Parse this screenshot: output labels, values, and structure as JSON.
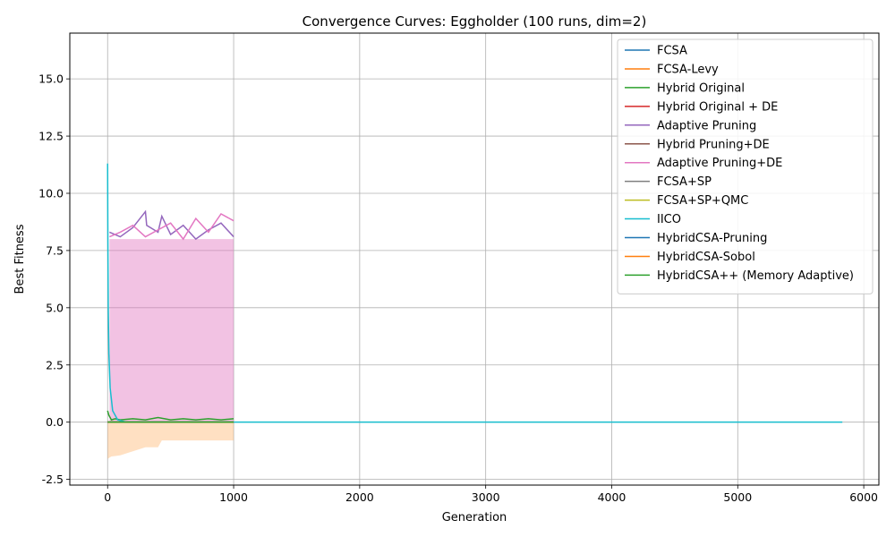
{
  "chart_data": {
    "type": "line",
    "title": "Convergence Curves: Eggholder (100 runs, dim=2)",
    "xlabel": "Generation",
    "ylabel": "Best Fitness",
    "xlim": [
      -300,
      6120
    ],
    "ylim": [
      -2.75,
      17.0
    ],
    "xticks": [
      0,
      1000,
      2000,
      3000,
      4000,
      5000,
      6000
    ],
    "yticks": [
      -2.5,
      0.0,
      2.5,
      5.0,
      7.5,
      10.0,
      12.5,
      15.0
    ],
    "grid": true,
    "legend_position": "top-right",
    "series": [
      {
        "name": "FCSA",
        "color": "#1f77b4",
        "x": [
          0,
          1000
        ],
        "y": [
          0.0,
          0.0
        ]
      },
      {
        "name": "FCSA-Levy",
        "color": "#ff7f0e",
        "x": [
          0,
          1000
        ],
        "y": [
          0.0,
          0.0
        ]
      },
      {
        "name": "Hybrid Original",
        "color": "#2ca02c",
        "x": [
          0,
          10,
          30,
          60,
          100,
          200,
          300,
          400,
          500,
          600,
          700,
          800,
          900,
          1000
        ],
        "y": [
          0.5,
          0.3,
          0.1,
          0.15,
          0.1,
          0.15,
          0.1,
          0.2,
          0.1,
          0.15,
          0.1,
          0.15,
          0.1,
          0.15
        ]
      },
      {
        "name": "Hybrid Original + DE",
        "color": "#d62728",
        "x": [
          0,
          1000
        ],
        "y": [
          0.0,
          0.0
        ]
      },
      {
        "name": "Adaptive Pruning",
        "color": "#9467bd",
        "x": [
          15,
          100,
          200,
          300,
          310,
          400,
          430,
          500,
          600,
          700,
          800,
          900,
          1000
        ],
        "y": [
          8.3,
          8.1,
          8.5,
          9.2,
          8.6,
          8.3,
          9.0,
          8.2,
          8.6,
          8.0,
          8.4,
          8.7,
          8.1
        ]
      },
      {
        "name": "Hybrid Pruning+DE",
        "color": "#8c564b",
        "x": [
          0,
          1000
        ],
        "y": [
          0.0,
          0.0
        ]
      },
      {
        "name": "Adaptive Pruning+DE",
        "color": "#e377c2",
        "x": [
          15,
          100,
          200,
          300,
          400,
          500,
          600,
          700,
          800,
          900,
          1000
        ],
        "y": [
          8.1,
          8.3,
          8.6,
          8.1,
          8.4,
          8.7,
          8.0,
          8.9,
          8.3,
          9.1,
          8.8
        ]
      },
      {
        "name": "FCSA+SP",
        "color": "#7f7f7f",
        "x": [
          0,
          1000
        ],
        "y": [
          0.0,
          0.0
        ]
      },
      {
        "name": "FCSA+SP+QMC",
        "color": "#bcbd22",
        "x": [
          0,
          1000
        ],
        "y": [
          0.0,
          0.0
        ]
      },
      {
        "name": "IICO",
        "color": "#17becf",
        "x": [
          0,
          2,
          5,
          10,
          20,
          40,
          80,
          150,
          1000,
          5830
        ],
        "y": [
          11.3,
          8.0,
          5.0,
          3.0,
          1.5,
          0.5,
          0.1,
          0.0,
          0.0,
          0.0
        ]
      },
      {
        "name": "HybridCSA-Pruning",
        "color": "#1f77b4",
        "x": [
          0,
          1000
        ],
        "y": [
          0.0,
          0.0
        ]
      },
      {
        "name": "HybridCSA-Sobol",
        "color": "#ff7f0e",
        "x": [
          0,
          1000
        ],
        "y": [
          0.0,
          0.0
        ]
      },
      {
        "name": "HybridCSA++ (Memory Adaptive)",
        "color": "#2ca02c",
        "x": [
          0,
          1000
        ],
        "y": [
          0.0,
          0.0
        ]
      }
    ],
    "bands": [
      {
        "series": "Adaptive Pruning+DE",
        "color": "#e377c2",
        "x": [
          15,
          1000
        ],
        "lower": [
          0.0,
          0.0
        ],
        "upper": [
          8.0,
          8.0
        ]
      },
      {
        "series": "HybridCSA-Sobol",
        "color": "#ffbb78",
        "x": [
          0,
          30,
          100,
          300,
          400,
          430,
          1000
        ],
        "lower": [
          -1.6,
          -1.5,
          -1.45,
          -1.1,
          -1.1,
          -0.8,
          -0.8
        ],
        "upper": [
          0.0,
          0.0,
          0.0,
          0.0,
          0.0,
          0.0,
          0.0
        ]
      }
    ]
  }
}
